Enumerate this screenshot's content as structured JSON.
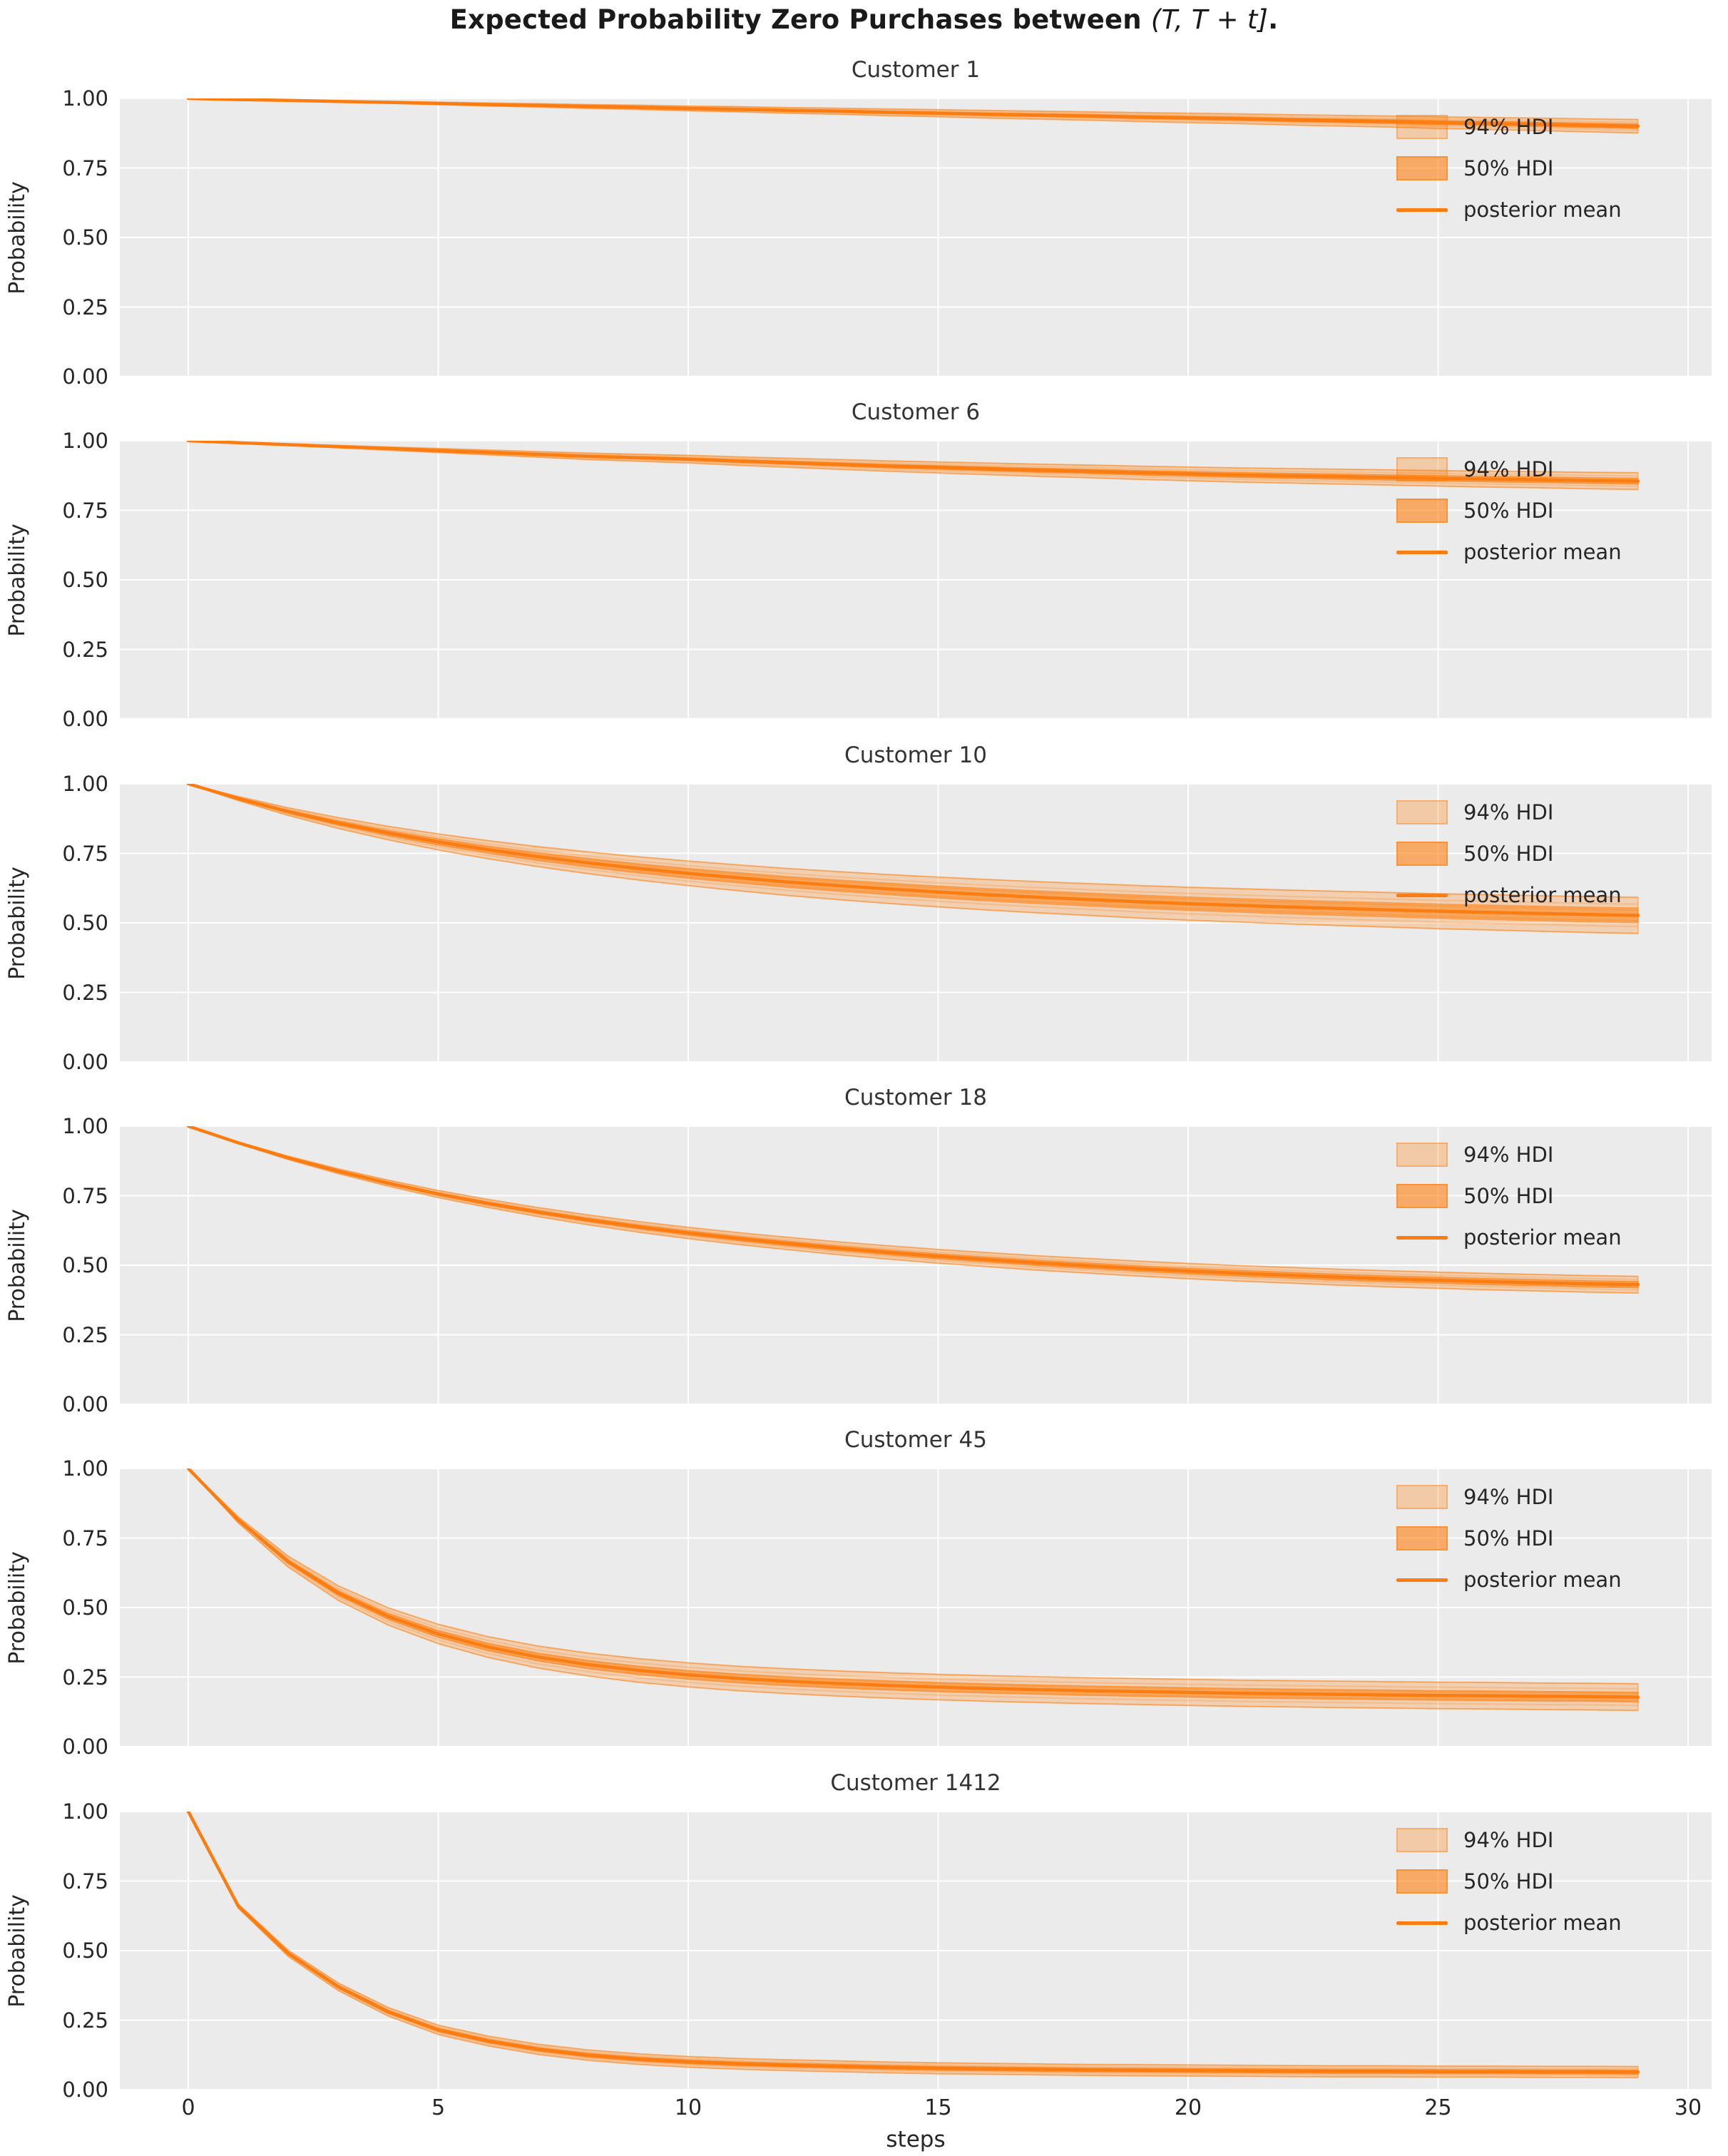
{
  "figure": {
    "title_main": "Expected Probability Zero Purchases between ",
    "title_math": "(T, T + t]",
    "title_period": ".",
    "background": "#ffffff"
  },
  "axes": {
    "ylabel": "Probability",
    "xlabel": "steps",
    "yticks": [
      "1.00",
      "0.75",
      "0.50",
      "0.25",
      "0.00"
    ],
    "xticks": [
      "0",
      "5",
      "10",
      "15",
      "20",
      "25",
      "30"
    ],
    "plot_background": "#ebebeb",
    "grid_color": "#ffffff"
  },
  "legend": {
    "items": [
      {
        "label": "94% HDI",
        "swatch": "band-94"
      },
      {
        "label": "50% HDI",
        "swatch": "band-50"
      },
      {
        "label": "posterior mean",
        "swatch": "line"
      }
    ]
  },
  "colors": {
    "posterior_mean": "#fb7d12",
    "hdi_50_fill": "rgba(255,127,14,0.52)",
    "hdi_94_fill": "rgba(255,127,14,0.26)",
    "strand": "#ff7f0e"
  },
  "chart_data": {
    "type": "line",
    "title": "Expected Probability Zero Purchases between (T, T + t].",
    "xlabel": "steps",
    "ylabel": "Probability",
    "x_ticks": [
      0,
      5,
      10,
      15,
      20,
      25,
      30
    ],
    "y_ticks": [
      1.0,
      0.75,
      0.5,
      0.25,
      0.0
    ],
    "ylim": [
      0,
      1
    ],
    "xlim": [
      -1.4,
      30.5
    ],
    "grid": true,
    "legend_position": "upper right",
    "x": [
      0,
      1,
      2,
      3,
      4,
      5,
      6,
      7,
      8,
      9,
      10,
      11,
      12,
      13,
      14,
      15,
      16,
      17,
      18,
      19,
      20,
      21,
      22,
      23,
      24,
      25,
      26,
      27,
      28,
      29
    ],
    "panels": [
      {
        "title": "Customer 1",
        "posterior_mean": [
          1.0,
          0.996,
          0.993,
          0.989,
          0.986,
          0.982,
          0.978,
          0.975,
          0.971,
          0.968,
          0.964,
          0.961,
          0.957,
          0.954,
          0.95,
          0.947,
          0.943,
          0.94,
          0.937,
          0.933,
          0.93,
          0.927,
          0.923,
          0.92,
          0.917,
          0.913,
          0.91,
          0.907,
          0.903,
          0.9
        ],
        "hdi94_halfwidth": [
          0,
          0.001,
          0.0017,
          0.0026,
          0.0034,
          0.0043,
          0.0053,
          0.006,
          0.007,
          0.0077,
          0.0086,
          0.0094,
          0.0103,
          0.011,
          0.012,
          0.0127,
          0.0137,
          0.0144,
          0.0151,
          0.0161,
          0.0168,
          0.0175,
          0.0185,
          0.0192,
          0.0199,
          0.0209,
          0.0216,
          0.0223,
          0.0233,
          0.024
        ],
        "hdi50_halfwidth": [
          0,
          0.0004,
          0.0006,
          0.001,
          0.0013,
          0.0016,
          0.002,
          0.0023,
          0.0026,
          0.0029,
          0.0032,
          0.0035,
          0.0039,
          0.0041,
          0.0045,
          0.0048,
          0.0051,
          0.0054,
          0.0057,
          0.006,
          0.0063,
          0.0066,
          0.0069,
          0.0072,
          0.0075,
          0.0078,
          0.0081,
          0.0084,
          0.0087,
          0.009
        ]
      },
      {
        "title": "Customer 6",
        "posterior_mean": [
          1.0,
          0.993,
          0.986,
          0.979,
          0.972,
          0.965,
          0.958,
          0.951,
          0.944,
          0.939,
          0.934,
          0.927,
          0.921,
          0.915,
          0.909,
          0.904,
          0.899,
          0.894,
          0.89,
          0.885,
          0.881,
          0.877,
          0.874,
          0.871,
          0.868,
          0.865,
          0.862,
          0.86,
          0.857,
          0.855
        ],
        "hdi94_halfwidth": [
          0,
          0.0014,
          0.0029,
          0.0043,
          0.0058,
          0.0072,
          0.0087,
          0.0101,
          0.0116,
          0.0126,
          0.0137,
          0.0151,
          0.0163,
          0.0176,
          0.0188,
          0.0199,
          0.0209,
          0.0219,
          0.0228,
          0.0238,
          0.0246,
          0.0254,
          0.0261,
          0.0267,
          0.0273,
          0.0279,
          0.0286,
          0.029,
          0.0296,
          0.03
        ],
        "hdi50_halfwidth": [
          0,
          0.0005,
          0.0011,
          0.0016,
          0.0021,
          0.0027,
          0.0032,
          0.0037,
          0.0043,
          0.0046,
          0.005,
          0.0055,
          0.006,
          0.0065,
          0.0069,
          0.0073,
          0.0077,
          0.008,
          0.0083,
          0.0087,
          0.009,
          0.0093,
          0.0096,
          0.0098,
          0.01,
          0.0102,
          0.0105,
          0.0106,
          0.0109,
          0.011
        ]
      },
      {
        "title": "Customer 10",
        "posterior_mean": [
          1.0,
          0.947,
          0.9,
          0.859,
          0.823,
          0.791,
          0.763,
          0.738,
          0.716,
          0.696,
          0.678,
          0.662,
          0.647,
          0.634,
          0.622,
          0.611,
          0.601,
          0.592,
          0.584,
          0.576,
          0.569,
          0.563,
          0.557,
          0.552,
          0.547,
          0.542,
          0.538,
          0.534,
          0.53,
          0.527
        ],
        "hdi94_halfwidth": [
          0,
          0.0073,
          0.0137,
          0.0194,
          0.0243,
          0.0287,
          0.0326,
          0.036,
          0.039,
          0.0418,
          0.0442,
          0.0464,
          0.0485,
          0.0503,
          0.0519,
          0.0535,
          0.0548,
          0.0561,
          0.0572,
          0.0583,
          0.0592,
          0.06,
          0.0609,
          0.0616,
          0.0622,
          0.0629,
          0.0635,
          0.064,
          0.0646,
          0.065
        ],
        "hdi50_halfwidth": [
          0,
          0.003,
          0.0057,
          0.0081,
          0.0101,
          0.0119,
          0.0135,
          0.015,
          0.0162,
          0.0174,
          0.0184,
          0.0193,
          0.0202,
          0.0209,
          0.0216,
          0.0222,
          0.0228,
          0.0233,
          0.0238,
          0.0242,
          0.0246,
          0.025,
          0.0253,
          0.0256,
          0.0259,
          0.0262,
          0.0264,
          0.0266,
          0.0268,
          0.027
        ]
      },
      {
        "title": "Customer 18",
        "posterior_mean": [
          1.0,
          0.94,
          0.886,
          0.838,
          0.795,
          0.756,
          0.722,
          0.691,
          0.663,
          0.638,
          0.616,
          0.596,
          0.578,
          0.561,
          0.546,
          0.532,
          0.52,
          0.508,
          0.498,
          0.488,
          0.479,
          0.471,
          0.464,
          0.457,
          0.451,
          0.446,
          0.441,
          0.437,
          0.433,
          0.43
        ],
        "hdi94_halfwidth": [
          0,
          0.0032,
          0.006,
          0.0085,
          0.0108,
          0.0128,
          0.0146,
          0.0163,
          0.0177,
          0.019,
          0.0202,
          0.0213,
          0.0222,
          0.0231,
          0.0239,
          0.0246,
          0.0252,
          0.0259,
          0.0264,
          0.0269,
          0.0274,
          0.0278,
          0.0282,
          0.0286,
          0.0289,
          0.0291,
          0.0294,
          0.0296,
          0.0298,
          0.03
        ],
        "hdi50_halfwidth": [
          0,
          0.0013,
          0.0024,
          0.0034,
          0.0043,
          0.0051,
          0.0059,
          0.0065,
          0.0071,
          0.0076,
          0.0081,
          0.0085,
          0.0089,
          0.0093,
          0.0096,
          0.0099,
          0.0101,
          0.0104,
          0.0106,
          0.0108,
          0.011,
          0.0112,
          0.0113,
          0.0115,
          0.0116,
          0.0117,
          0.0118,
          0.0119,
          0.0119,
          0.012
        ]
      },
      {
        "title": "Customer 45",
        "posterior_mean": [
          1.0,
          0.815,
          0.665,
          0.552,
          0.468,
          0.405,
          0.358,
          0.322,
          0.295,
          0.274,
          0.258,
          0.245,
          0.235,
          0.227,
          0.22,
          0.214,
          0.209,
          0.205,
          0.201,
          0.198,
          0.195,
          0.192,
          0.19,
          0.188,
          0.186,
          0.184,
          0.183,
          0.181,
          0.18,
          0.178
        ],
        "hdi94_halfwidth": [
          0,
          0.0108,
          0.0196,
          0.0262,
          0.0311,
          0.0347,
          0.0375,
          0.0396,
          0.0412,
          0.0424,
          0.0433,
          0.0441,
          0.0447,
          0.0451,
          0.0456,
          0.0459,
          0.0462,
          0.0464,
          0.0467,
          0.0468,
          0.047,
          0.0472,
          0.0473,
          0.0474,
          0.0475,
          0.0477,
          0.0477,
          0.0478,
          0.0479,
          0.048
        ],
        "hdi50_halfwidth": [
          0,
          0.0041,
          0.0073,
          0.0098,
          0.0117,
          0.013,
          0.0141,
          0.0148,
          0.0154,
          0.0159,
          0.0162,
          0.0165,
          0.0168,
          0.0169,
          0.0171,
          0.0172,
          0.0173,
          0.0174,
          0.0175,
          0.0176,
          0.0176,
          0.0177,
          0.0177,
          0.0178,
          0.0178,
          0.0179,
          0.0179,
          0.0179,
          0.018,
          0.018
        ]
      },
      {
        "title": "Customer 1412",
        "posterior_mean": [
          1.0,
          0.66,
          0.49,
          0.37,
          0.28,
          0.215,
          0.175,
          0.145,
          0.124,
          0.11,
          0.1,
          0.093,
          0.088,
          0.084,
          0.08,
          0.077,
          0.075,
          0.073,
          0.071,
          0.07,
          0.069,
          0.068,
          0.067,
          0.066,
          0.066,
          0.065,
          0.065,
          0.064,
          0.064,
          0.063
        ],
        "hdi94_halfwidth": [
          0,
          0.0073,
          0.0109,
          0.0135,
          0.0154,
          0.0168,
          0.0176,
          0.0183,
          0.0187,
          0.019,
          0.0192,
          0.0194,
          0.0195,
          0.0196,
          0.0196,
          0.0197,
          0.0197,
          0.0198,
          0.0198,
          0.0199,
          0.0199,
          0.0199,
          0.0199,
          0.0199,
          0.0199,
          0.02,
          0.02,
          0.02,
          0.02,
          0.02
        ],
        "hdi50_halfwidth": [
          0,
          0.0029,
          0.0044,
          0.0054,
          0.0061,
          0.0067,
          0.007,
          0.0073,
          0.0075,
          0.0076,
          0.0077,
          0.0077,
          0.0078,
          0.0078,
          0.0079,
          0.0079,
          0.0079,
          0.0079,
          0.0079,
          0.0079,
          0.008,
          0.008,
          0.008,
          0.008,
          0.008,
          0.008,
          0.008,
          0.008,
          0.008,
          0.008
        ]
      }
    ]
  }
}
